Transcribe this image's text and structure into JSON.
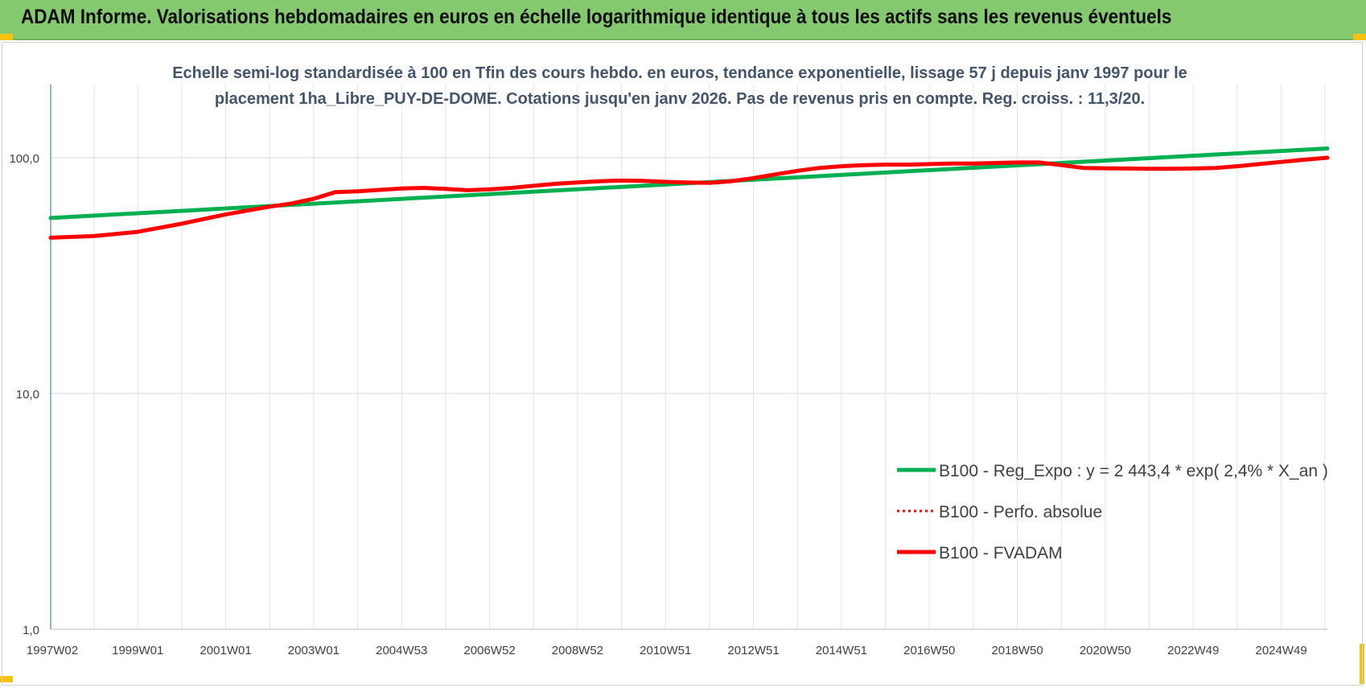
{
  "header": {
    "title": "ADAM Informe. Valorisations hebdomadaires en euros en échelle logarithmique identique à tous les actifs sans les revenus éventuels"
  },
  "chart_data": {
    "type": "line",
    "title_lines": [
      "Echelle semi-log standardisée à 100 en Tfin des cours hebdo. en euros, tendance exponentielle, lissage 57 j depuis janv 1997 pour le",
      "placement 1ha_Libre_PUY-DE-DOME. Cotations jusqu'en janv 2026.  Pas de revenus pris en compte. Reg. croiss. : 11,3/20."
    ],
    "y_scale": "log",
    "ylim": [
      1,
      180
    ],
    "y_ticks": [
      {
        "value": 1,
        "label": "1,0"
      },
      {
        "value": 10,
        "label": "10,0"
      },
      {
        "value": 100,
        "label": "100,0"
      }
    ],
    "x_range": [
      1997.02,
      2026.05
    ],
    "x_ticks": [
      {
        "x": 1997.02,
        "label": "1997W02"
      },
      {
        "x": 1999.0,
        "label": "1999W01"
      },
      {
        "x": 2001.0,
        "label": "2001W01"
      },
      {
        "x": 2003.0,
        "label": "2003W01"
      },
      {
        "x": 2005.0,
        "label": "2004W53"
      },
      {
        "x": 2007.0,
        "label": "2006W52"
      },
      {
        "x": 2009.0,
        "label": "2008W52"
      },
      {
        "x": 2011.0,
        "label": "2010W51"
      },
      {
        "x": 2013.0,
        "label": "2012W51"
      },
      {
        "x": 2015.0,
        "label": "2014W51"
      },
      {
        "x": 2017.0,
        "label": "2016W50"
      },
      {
        "x": 2019.0,
        "label": "2018W50"
      },
      {
        "x": 2021.0,
        "label": "2020W50"
      },
      {
        "x": 2023.0,
        "label": "2022W49"
      },
      {
        "x": 2025.0,
        "label": "2024W49"
      }
    ],
    "grid": true,
    "legend_position": "bottom-right",
    "series": [
      {
        "name": "B100 - Reg_Expo : y = 2 443,4 * exp( 2,4% *  X_an )",
        "color": "#00b050",
        "style": "solid",
        "points": [
          [
            1997.02,
            55.5
          ],
          [
            2026.05,
            109.5
          ]
        ]
      },
      {
        "name": "B100 - Perfo. absolue",
        "color": "#ff0000",
        "style": "dotted",
        "points": []
      },
      {
        "name": "B100 - FVADAM",
        "color": "#ff0000",
        "style": "solid",
        "points": [
          [
            1997.02,
            45.8
          ],
          [
            1998.0,
            46.5
          ],
          [
            1999.0,
            48.5
          ],
          [
            2000.0,
            52.5
          ],
          [
            2001.0,
            57.5
          ],
          [
            2002.0,
            62.0
          ],
          [
            2002.5,
            64.0
          ],
          [
            2003.0,
            67.0
          ],
          [
            2003.5,
            71.5
          ],
          [
            2004.0,
            72.0
          ],
          [
            2004.5,
            73.0
          ],
          [
            2005.0,
            74.0
          ],
          [
            2005.5,
            74.5
          ],
          [
            2006.0,
            73.8
          ],
          [
            2006.5,
            72.8
          ],
          [
            2007.0,
            73.5
          ],
          [
            2007.5,
            74.5
          ],
          [
            2008.0,
            76.0
          ],
          [
            2008.5,
            77.5
          ],
          [
            2009.0,
            78.5
          ],
          [
            2009.5,
            79.5
          ],
          [
            2010.0,
            80.0
          ],
          [
            2010.5,
            79.8
          ],
          [
            2011.0,
            79.0
          ],
          [
            2011.5,
            78.5
          ],
          [
            2012.0,
            78.2
          ],
          [
            2012.5,
            79.5
          ],
          [
            2013.0,
            82.0
          ],
          [
            2013.5,
            85.0
          ],
          [
            2014.0,
            88.0
          ],
          [
            2014.5,
            90.5
          ],
          [
            2015.0,
            92.0
          ],
          [
            2015.5,
            93.0
          ],
          [
            2016.0,
            93.5
          ],
          [
            2016.5,
            93.5
          ],
          [
            2017.0,
            94.0
          ],
          [
            2017.5,
            94.5
          ],
          [
            2018.0,
            94.5
          ],
          [
            2018.5,
            95.0
          ],
          [
            2019.0,
            95.5
          ],
          [
            2019.5,
            95.5
          ],
          [
            2020.0,
            93.0
          ],
          [
            2020.5,
            90.5
          ],
          [
            2021.0,
            90.2
          ],
          [
            2021.5,
            90.0
          ],
          [
            2022.0,
            89.8
          ],
          [
            2022.5,
            89.8
          ],
          [
            2023.0,
            90.0
          ],
          [
            2023.5,
            90.5
          ],
          [
            2024.0,
            92.0
          ],
          [
            2024.5,
            94.0
          ],
          [
            2025.0,
            96.0
          ],
          [
            2025.5,
            98.0
          ],
          [
            2026.05,
            100.0
          ]
        ]
      }
    ]
  }
}
